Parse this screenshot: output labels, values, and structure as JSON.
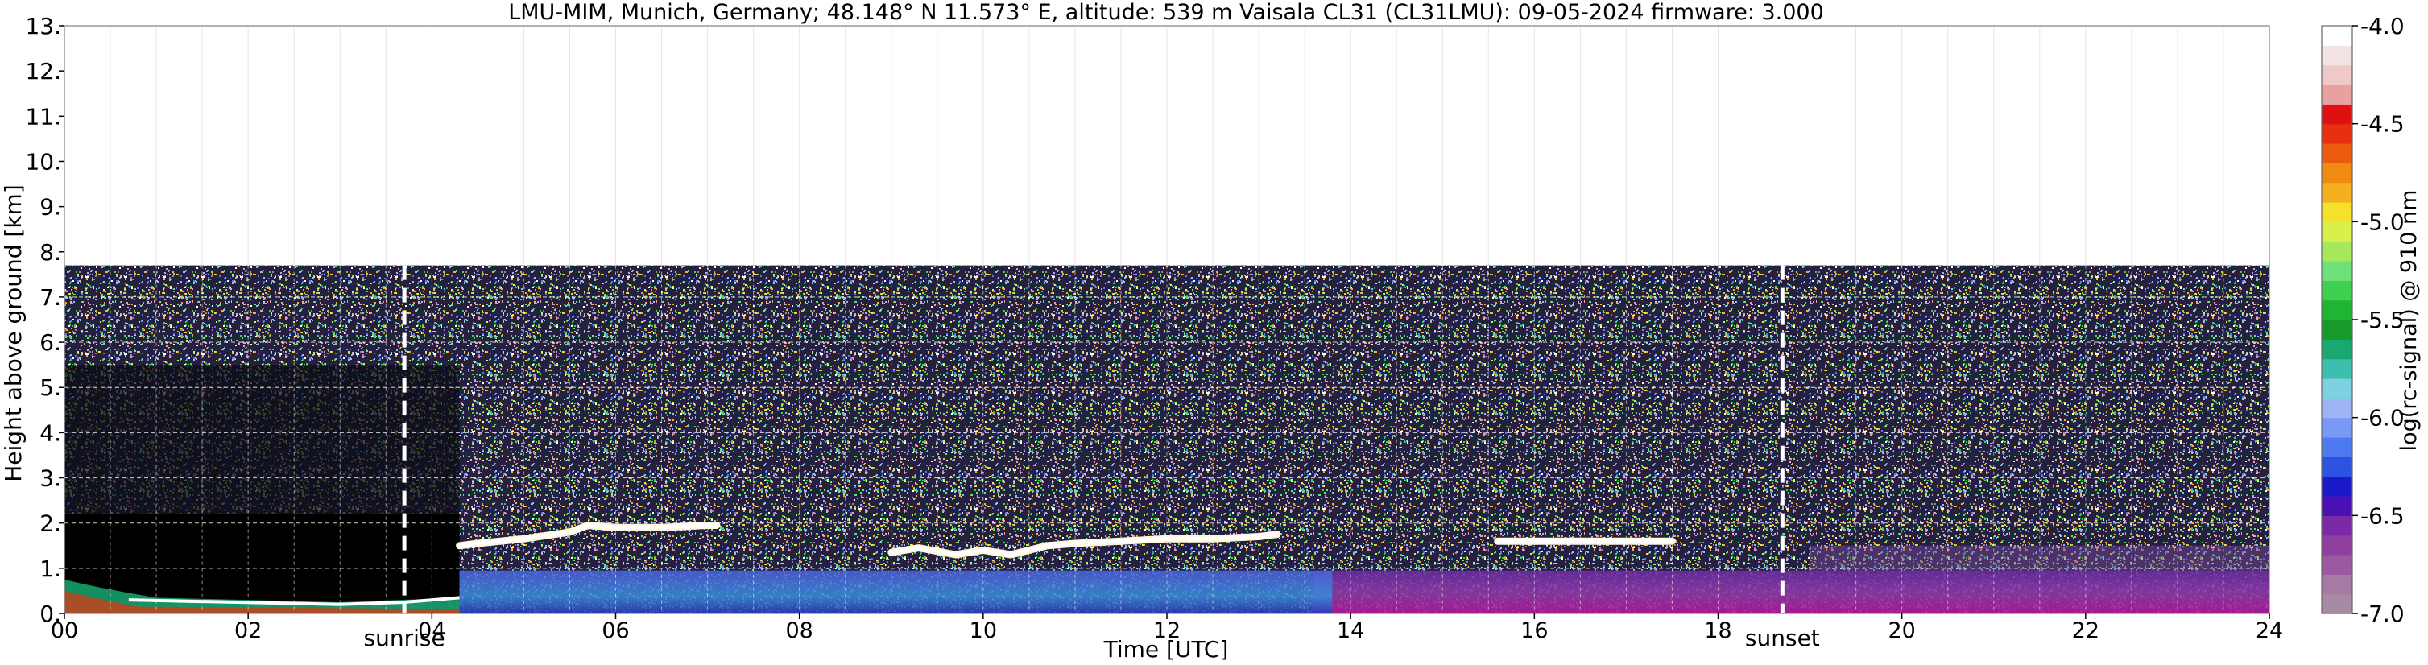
{
  "chart_data": {
    "type": "heatmap",
    "title": "LMU-MIM, Munich, Germany; 48.148° N 11.573° E, altitude: 539 m    Vaisala CL31 (CL31LMU): 09-05-2024    firmware: 3.000",
    "xlabel": "Time [UTC]",
    "ylabel": "Height above ground [km]",
    "xlim": [
      0,
      24
    ],
    "ylim": [
      0,
      13
    ],
    "x_ticks": [
      "00",
      "02",
      "04",
      "06",
      "08",
      "10",
      "12",
      "14",
      "16",
      "18",
      "20",
      "22",
      "24"
    ],
    "y_ticks": [
      "0.",
      "1.",
      "2.",
      "3.",
      "4.",
      "5.",
      "6.",
      "7.",
      "8.",
      "9.",
      "10.",
      "11.",
      "12.",
      "13."
    ],
    "grid": true,
    "signal_top_km": 7.7,
    "colorbar": {
      "label": "log(rc-signal) @ 910 nm",
      "range": [
        -7.0,
        -4.0
      ],
      "ticks": [
        "-4.0",
        "-4.5",
        "-5.0",
        "-5.5",
        "-6.0",
        "-6.5",
        "-7.0"
      ],
      "colors": [
        "#a78aa3",
        "#a67aa3",
        "#9b5aa0",
        "#8e3fa0",
        "#7a2aa6",
        "#4b10b3",
        "#1a1ac8",
        "#2b52e0",
        "#4d7af0",
        "#7a98f5",
        "#9fb4f5",
        "#7fd0e0",
        "#3dbfb0",
        "#18a870",
        "#169a2a",
        "#1fb532",
        "#3fd050",
        "#6fe07a",
        "#a6e85c",
        "#d9f04a",
        "#f5e02a",
        "#f5b020",
        "#f08a12",
        "#ec5a10",
        "#e83010",
        "#e01010",
        "#e8a0a0",
        "#efc8c8",
        "#f2e4e4",
        "#ffffff"
      ]
    },
    "annotations": [
      {
        "text": "sunrise",
        "x": 3.7
      },
      {
        "text": "sunset",
        "x": 18.7
      }
    ],
    "cloud_layers": [
      {
        "x": [
          4.3,
          4.5,
          5.0,
          5.5,
          5.7,
          6.0,
          6.5,
          7.0,
          7.1
        ],
        "y": [
          1.5,
          1.55,
          1.65,
          1.8,
          1.95,
          1.9,
          1.9,
          1.95,
          1.95
        ]
      },
      {
        "x": [
          9.0,
          9.3,
          9.7,
          10.0,
          10.3,
          10.7,
          11.0,
          11.5,
          12.0,
          12.5,
          13.0,
          13.2
        ],
        "y": [
          1.35,
          1.45,
          1.3,
          1.4,
          1.3,
          1.5,
          1.55,
          1.6,
          1.65,
          1.65,
          1.7,
          1.75
        ]
      },
      {
        "x": [
          15.6,
          16.0,
          16.5,
          17.0,
          17.5
        ],
        "y": [
          1.6,
          1.6,
          1.6,
          1.6,
          1.6
        ]
      }
    ]
  }
}
